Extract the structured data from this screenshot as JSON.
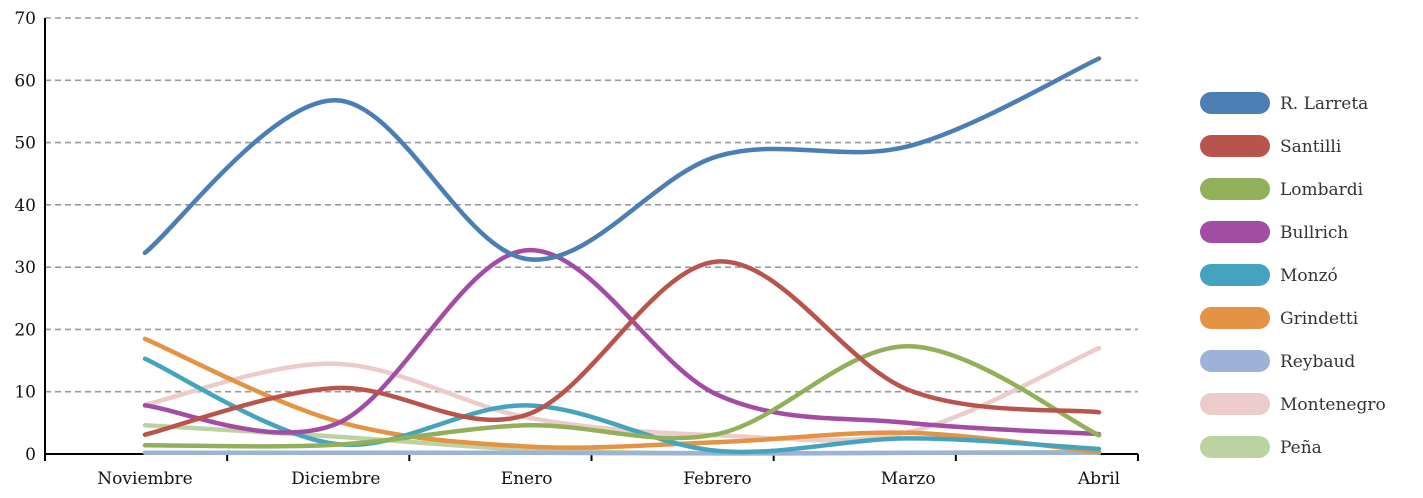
{
  "chart_data": {
    "type": "line",
    "title": "",
    "xlabel": "",
    "ylabel": "",
    "categories": [
      "Noviembre",
      "Diciembre",
      "Enero",
      "Febrero",
      "Marzo",
      "Abril"
    ],
    "ylim": [
      0,
      70
    ],
    "yticks": [
      "0",
      "10",
      "20",
      "30",
      "40",
      "50",
      "60",
      "70"
    ],
    "grid": true,
    "legend_position": "right",
    "series": [
      {
        "name": "R. Larreta",
        "color": "#4a7eb4",
        "values": [
          32.3,
          56.8,
          31.3,
          47.8,
          49.4,
          63.5
        ]
      },
      {
        "name": "Santilli",
        "color": "#b9544d",
        "values": [
          3.1,
          10.6,
          6.3,
          30.9,
          10.3,
          6.7
        ]
      },
      {
        "name": "Lombardi",
        "color": "#92b05a",
        "values": [
          1.4,
          1.5,
          4.6,
          3.2,
          17.3,
          3.0
        ]
      },
      {
        "name": "Bullrich",
        "color": "#a24da3",
        "values": [
          7.8,
          4.8,
          32.7,
          9.5,
          5.0,
          3.2
        ]
      },
      {
        "name": "Monzó",
        "color": "#45a4bd",
        "values": [
          15.3,
          1.6,
          7.8,
          0.5,
          2.5,
          0.8
        ]
      },
      {
        "name": "Grindetti",
        "color": "#e49344",
        "values": [
          18.5,
          5.3,
          1.2,
          1.9,
          3.4,
          0.3
        ]
      },
      {
        "name": "Reybaud",
        "color": "#9cb3d7",
        "values": [
          0.2,
          0.2,
          0.2,
          0.1,
          0.2,
          0.2
        ]
      },
      {
        "name": "Montenegro",
        "color": "#eccccb",
        "values": [
          7.9,
          14.5,
          5.9,
          3.0,
          3.5,
          17.0
        ]
      },
      {
        "name": "Peña",
        "color": "#bdd2a3",
        "values": [
          4.6,
          2.8,
          0.7,
          0.1,
          0.2,
          0.3
        ]
      }
    ]
  }
}
